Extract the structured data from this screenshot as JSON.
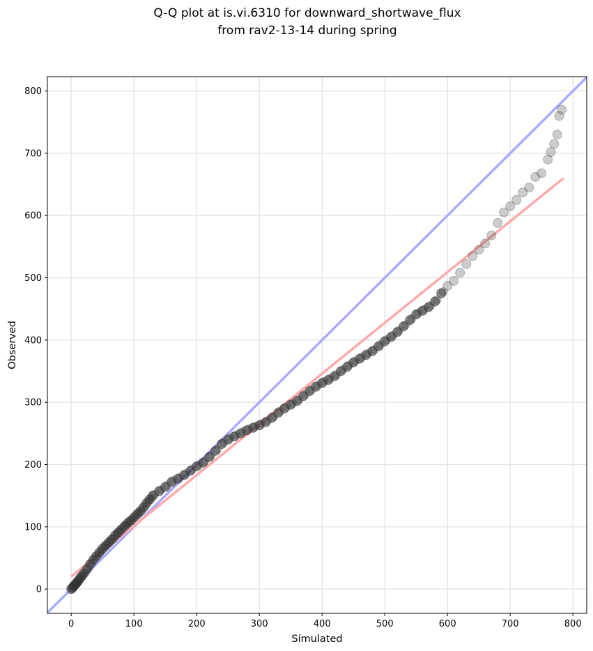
{
  "chart_data": {
    "type": "scatter",
    "title": "Q-Q plot at is.vi.6310 for downward_shortwave_flux",
    "subtitle": "from rav2-13-14 during spring",
    "xlabel": "Simulated",
    "ylabel": "Observed",
    "xlim": [
      -38,
      822
    ],
    "ylim": [
      -39,
      823
    ],
    "xticks": [
      0,
      100,
      200,
      300,
      400,
      500,
      600,
      700,
      800
    ],
    "yticks": [
      0,
      100,
      200,
      300,
      400,
      500,
      600,
      700,
      800
    ],
    "grid": true,
    "reference_line": {
      "name": "1:1 line",
      "color": "#aaaaff",
      "points": [
        [
          -38,
          -38
        ],
        [
          823,
          823
        ]
      ]
    },
    "fit_line": {
      "name": "linear fit",
      "color": "#ffaaaa",
      "points": [
        [
          0,
          20
        ],
        [
          785,
          660
        ]
      ]
    },
    "point_color": "#333333",
    "points": [
      [
        0,
        0
      ],
      [
        2,
        2
      ],
      [
        4,
        5
      ],
      [
        6,
        7
      ],
      [
        8,
        9
      ],
      [
        10,
        12
      ],
      [
        13,
        16
      ],
      [
        16,
        20
      ],
      [
        20,
        25
      ],
      [
        25,
        32
      ],
      [
        30,
        40
      ],
      [
        35,
        47
      ],
      [
        40,
        53
      ],
      [
        45,
        59
      ],
      [
        50,
        65
      ],
      [
        55,
        70
      ],
      [
        60,
        75
      ],
      [
        65,
        80
      ],
      [
        70,
        86
      ],
      [
        75,
        91
      ],
      [
        80,
        96
      ],
      [
        85,
        101
      ],
      [
        90,
        106
      ],
      [
        95,
        110
      ],
      [
        100,
        115
      ],
      [
        105,
        120
      ],
      [
        110,
        125
      ],
      [
        115,
        131
      ],
      [
        120,
        138
      ],
      [
        125,
        144
      ],
      [
        130,
        150
      ],
      [
        140,
        157
      ],
      [
        150,
        164
      ],
      [
        160,
        172
      ],
      [
        170,
        177
      ],
      [
        180,
        183
      ],
      [
        190,
        190
      ],
      [
        200,
        197
      ],
      [
        210,
        203
      ],
      [
        220,
        212
      ],
      [
        230,
        222
      ],
      [
        240,
        233
      ],
      [
        250,
        240
      ],
      [
        260,
        245
      ],
      [
        270,
        250
      ],
      [
        280,
        255
      ],
      [
        290,
        259
      ],
      [
        300,
        263
      ],
      [
        310,
        268
      ],
      [
        320,
        275
      ],
      [
        330,
        283
      ],
      [
        340,
        290
      ],
      [
        350,
        296
      ],
      [
        360,
        302
      ],
      [
        370,
        310
      ],
      [
        380,
        318
      ],
      [
        390,
        325
      ],
      [
        400,
        331
      ],
      [
        410,
        336
      ],
      [
        420,
        342
      ],
      [
        430,
        350
      ],
      [
        440,
        357
      ],
      [
        450,
        364
      ],
      [
        460,
        370
      ],
      [
        470,
        376
      ],
      [
        480,
        382
      ],
      [
        490,
        390
      ],
      [
        500,
        398
      ],
      [
        510,
        405
      ],
      [
        520,
        413
      ],
      [
        530,
        422
      ],
      [
        540,
        432
      ],
      [
        550,
        441
      ],
      [
        560,
        447
      ],
      [
        570,
        453
      ],
      [
        580,
        462
      ],
      [
        590,
        475
      ],
      [
        600,
        487
      ],
      [
        610,
        495
      ],
      [
        620,
        508
      ],
      [
        630,
        522
      ],
      [
        640,
        535
      ],
      [
        650,
        545
      ],
      [
        660,
        555
      ],
      [
        670,
        568
      ],
      [
        680,
        588
      ],
      [
        690,
        605
      ],
      [
        700,
        615
      ],
      [
        710,
        625
      ],
      [
        720,
        637
      ],
      [
        730,
        645
      ],
      [
        740,
        662
      ],
      [
        750,
        668
      ],
      [
        760,
        690
      ],
      [
        765,
        702
      ],
      [
        770,
        715
      ],
      [
        775,
        730
      ],
      [
        778,
        760
      ],
      [
        782,
        770
      ]
    ]
  }
}
